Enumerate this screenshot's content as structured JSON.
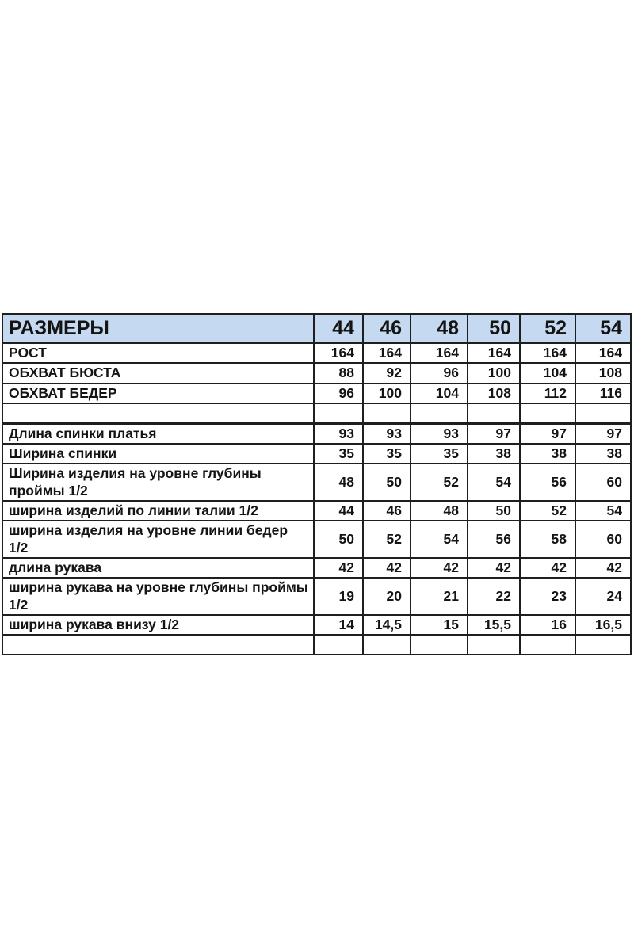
{
  "colors": {
    "header_bg": "#c5daf0",
    "border": "#1f1f1f",
    "text": "#141414",
    "page_bg": "#ffffff"
  },
  "chart_data": {
    "type": "table",
    "title": "РАЗМЕРЫ",
    "header_label": "РАЗМЕРЫ",
    "sizes": [
      "44",
      "46",
      "48",
      "50",
      "52",
      "54"
    ],
    "rows": [
      {
        "label": "РОСТ",
        "values": [
          "164",
          "164",
          "164",
          "164",
          "164",
          "164"
        ]
      },
      {
        "label": "ОБХВАТ БЮСТА",
        "values": [
          "88",
          "92",
          "96",
          "100",
          "104",
          "108"
        ]
      },
      {
        "label": "ОБХВАТ БЕДЕР",
        "values": [
          "96",
          "100",
          "104",
          "108",
          "112",
          "116"
        ]
      },
      {
        "label": "",
        "values": [
          "",
          "",
          "",
          "",
          "",
          ""
        ]
      },
      {
        "label": "Длина спинки платья",
        "values": [
          "93",
          "93",
          "93",
          "97",
          "97",
          "97"
        ]
      },
      {
        "label": "Ширина спинки",
        "values": [
          "35",
          "35",
          "35",
          "38",
          "38",
          "38"
        ]
      },
      {
        "label": "Ширина изделия на уровне глубины проймы 1/2",
        "values": [
          "48",
          "50",
          "52",
          "54",
          "56",
          "60"
        ]
      },
      {
        "label": "ширина изделий по линии талии 1/2",
        "values": [
          "44",
          "46",
          "48",
          "50",
          "52",
          "54"
        ]
      },
      {
        "label": "ширина изделия на уровне линии бедер 1/2",
        "values": [
          "50",
          "52",
          "54",
          "56",
          "58",
          "60"
        ]
      },
      {
        "label": "длина рукава",
        "values": [
          "42",
          "42",
          "42",
          "42",
          "42",
          "42"
        ]
      },
      {
        "label": "ширина рукава на уровне глубины проймы 1/2",
        "values": [
          "19",
          "20",
          "21",
          "22",
          "23",
          "24"
        ]
      },
      {
        "label": "ширина рукава внизу 1/2",
        "values": [
          "14",
          "14,5",
          "15",
          "15,5",
          "16",
          "16,5"
        ]
      },
      {
        "label": "",
        "values": [
          "",
          "",
          "",
          "",
          "",
          ""
        ]
      }
    ]
  }
}
